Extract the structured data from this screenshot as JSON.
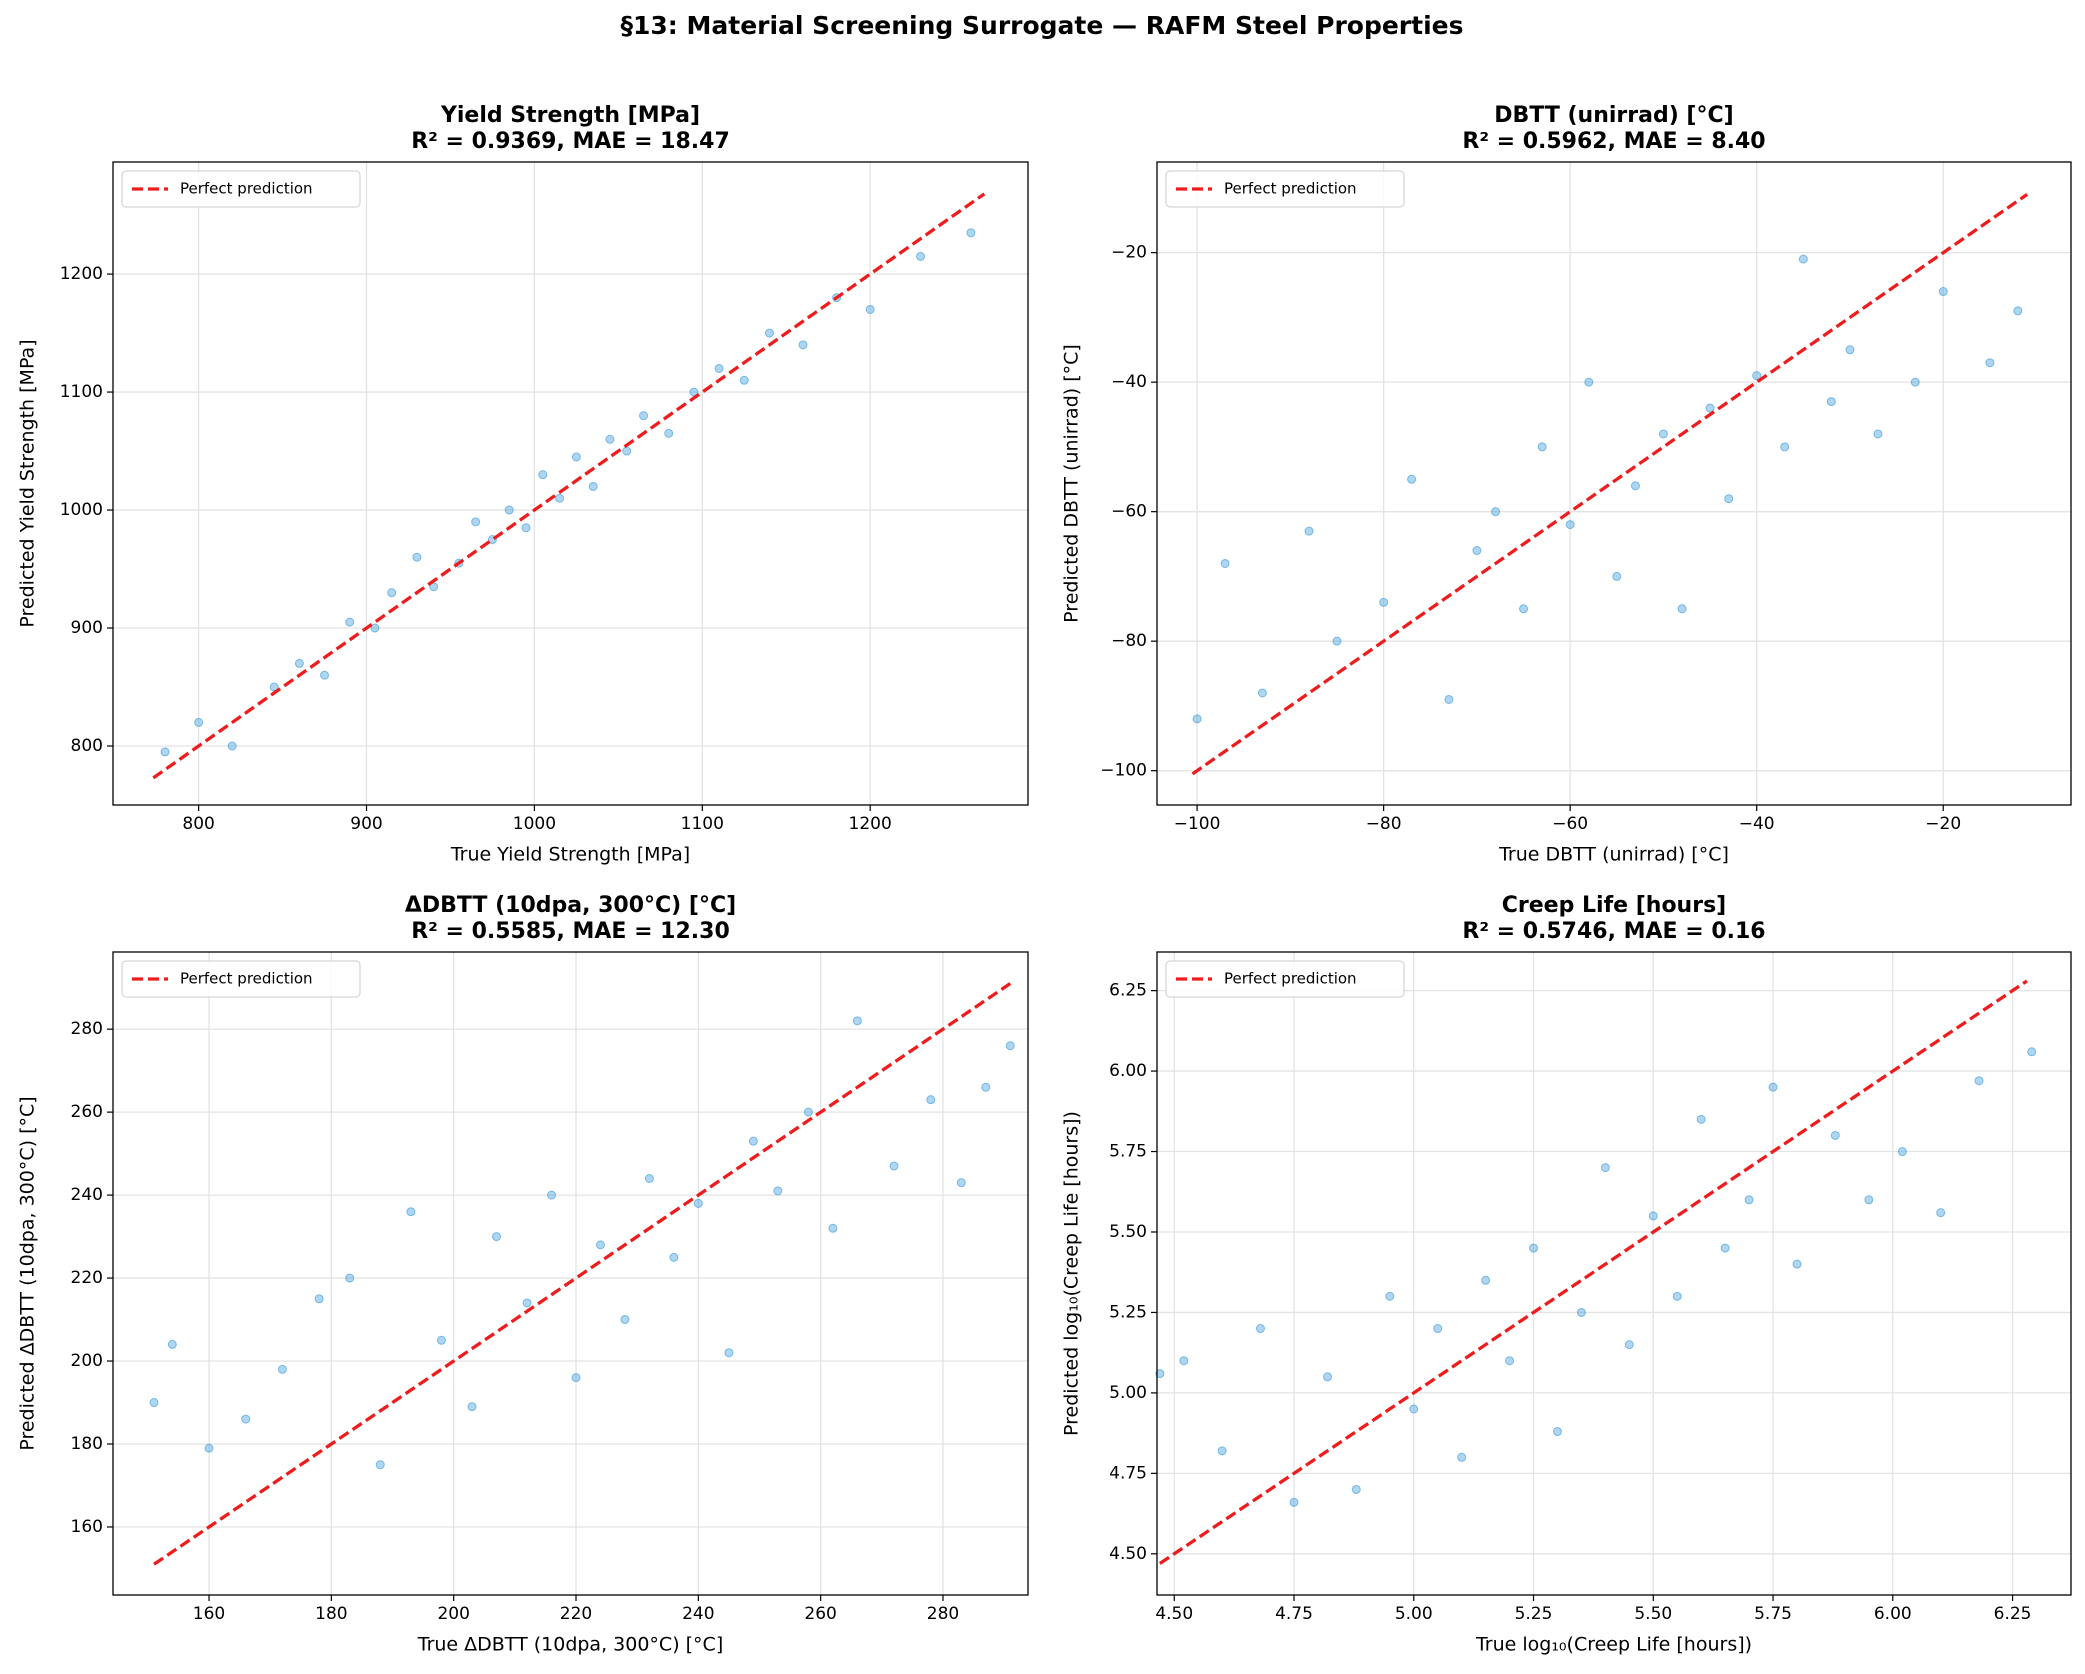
{
  "title": "§13: Material Screening Surrogate — RAFM Steel Properties",
  "chart_data": [
    {
      "type": "scatter",
      "title": "Yield Strength [MPa]",
      "subtitle": "R² = 0.9369, MAE = 18.47",
      "x_label": "True Yield Strength [MPa]",
      "y_label": "Predicted Yield Strength [MPa]",
      "xlim": [
        749,
        1294
      ],
      "ylim": [
        750,
        1295
      ],
      "xticks": [
        800,
        900,
        1000,
        1100,
        1200
      ],
      "yticks": [
        800,
        900,
        1000,
        1100,
        1200
      ],
      "grid": true,
      "legend": "upper left",
      "points": {
        "color": "#3498db",
        "x": [
          780,
          800,
          820,
          845,
          860,
          875,
          890,
          905,
          915,
          930,
          940,
          955,
          965,
          975,
          985,
          995,
          1005,
          1015,
          1025,
          1035,
          1045,
          1055,
          1065,
          1080,
          1095,
          1110,
          1125,
          1140,
          1160,
          1180,
          1200,
          1230,
          1260
        ],
        "y": [
          795,
          820,
          800,
          850,
          870,
          860,
          905,
          900,
          930,
          960,
          935,
          955,
          990,
          975,
          1000,
          985,
          1030,
          1010,
          1045,
          1020,
          1060,
          1050,
          1080,
          1065,
          1100,
          1120,
          1110,
          1150,
          1140,
          1180,
          1170,
          1215,
          1235
        ]
      },
      "reference_line": {
        "name": "Perfect prediction",
        "color": "#ee1c1c",
        "x": [
          773,
          1268
        ],
        "y": [
          773,
          1268
        ]
      }
    },
    {
      "type": "scatter",
      "title": "DBTT (unirrad) [°C]",
      "subtitle": "R² = 0.5962, MAE = 8.40",
      "x_label": "True DBTT (unirrad) [°C]",
      "y_label": "Predicted DBTT (unirrad) [°C]",
      "xlim": [
        -104.3,
        -6.3
      ],
      "ylim": [
        -105.3,
        -6.0
      ],
      "xticks": [
        {
          "value": -100,
          "label": "−100"
        },
        {
          "value": -80,
          "label": "−80"
        },
        {
          "value": -60,
          "label": "−60"
        },
        {
          "value": -40,
          "label": "−40"
        },
        {
          "value": -20,
          "label": "−20"
        }
      ],
      "yticks": [
        {
          "value": -100,
          "label": "−100"
        },
        {
          "value": -80,
          "label": "−80"
        },
        {
          "value": -60,
          "label": "−60"
        },
        {
          "value": -40,
          "label": "−40"
        },
        {
          "value": -20,
          "label": "−20"
        }
      ],
      "grid": true,
      "legend": "upper left",
      "points": {
        "color": "#3498db",
        "x": [
          -100,
          -97,
          -93,
          -88,
          -85,
          -80,
          -77,
          -73,
          -70,
          -68,
          -65,
          -63,
          -60,
          -58,
          -55,
          -53,
          -50,
          -48,
          -45,
          -43,
          -40,
          -37,
          -35,
          -32,
          -30,
          -27,
          -23,
          -20,
          -15,
          -12
        ],
        "y": [
          -92,
          -68,
          -88,
          -63,
          -80,
          -74,
          -55,
          -89,
          -66,
          -60,
          -75,
          -50,
          -62,
          -40,
          -70,
          -56,
          -48,
          -75,
          -44,
          -58,
          -39,
          -50,
          -21,
          -43,
          -35,
          -48,
          -40,
          -26,
          -37,
          -29
        ]
      },
      "reference_line": {
        "name": "Perfect prediction",
        "color": "#ee1c1c",
        "x": [
          -100.5,
          -11
        ],
        "y": [
          -100.5,
          -11
        ]
      }
    },
    {
      "type": "scatter",
      "title": "ΔDBTT (10dpa, 300°C) [°C]",
      "subtitle": "R² = 0.5585, MAE = 12.30",
      "x_label": "True ΔDBTT (10dpa, 300°C) [°C]",
      "y_label": "Predicted ΔDBTT (10dpa, 300°C) [°C]",
      "xlim": [
        144.3,
        293.9
      ],
      "ylim": [
        143.6,
        298.6
      ],
      "xticks": [
        160,
        180,
        200,
        220,
        240,
        260,
        280
      ],
      "yticks": [
        160,
        180,
        200,
        220,
        240,
        260,
        280
      ],
      "grid": true,
      "legend": "upper left",
      "points": {
        "color": "#3498db",
        "x": [
          151,
          154,
          160,
          166,
          172,
          178,
          183,
          188,
          193,
          198,
          203,
          207,
          212,
          216,
          220,
          224,
          228,
          232,
          236,
          240,
          245,
          249,
          253,
          258,
          262,
          266,
          272,
          278,
          283,
          287,
          291
        ],
        "y": [
          190,
          204,
          179,
          186,
          198,
          215,
          220,
          175,
          236,
          205,
          189,
          230,
          214,
          240,
          196,
          228,
          210,
          244,
          225,
          238,
          202,
          253,
          241,
          260,
          232,
          282,
          247,
          263,
          243,
          266,
          276
        ]
      },
      "reference_line": {
        "name": "Perfect prediction",
        "color": "#ee1c1c",
        "x": [
          151,
          291
        ],
        "y": [
          151,
          291
        ]
      }
    },
    {
      "type": "scatter",
      "title": "Creep Life [hours]",
      "subtitle": "R² = 0.5746, MAE = 0.16",
      "x_label": "True log₁₀(Creep Life [hours])",
      "y_label": "Predicted log₁₀(Creep Life [hours])",
      "xlim": [
        4.464,
        6.372
      ],
      "ylim": [
        4.372,
        6.37
      ],
      "xticks": [
        {
          "value": 4.5,
          "label": "4.50"
        },
        4.75,
        {
          "value": 5,
          "label": "5.00"
        },
        5.25,
        {
          "value": 5.5,
          "label": "5.50"
        },
        5.75,
        {
          "value": 6,
          "label": "6.00"
        },
        6.25
      ],
      "yticks": [
        {
          "value": 4.5,
          "label": "4.50"
        },
        4.75,
        {
          "value": 5,
          "label": "5.00"
        },
        5.25,
        {
          "value": 5.5,
          "label": "5.50"
        },
        5.75,
        {
          "value": 6,
          "label": "6.00"
        },
        6.25
      ],
      "grid": true,
      "legend": "upper left",
      "points": {
        "color": "#3498db",
        "x": [
          4.47,
          4.52,
          4.6,
          4.68,
          4.75,
          4.82,
          4.88,
          4.95,
          5.0,
          5.05,
          5.1,
          5.15,
          5.2,
          5.25,
          5.3,
          5.35,
          5.4,
          5.45,
          5.5,
          5.55,
          5.6,
          5.65,
          5.7,
          5.75,
          5.8,
          5.88,
          5.95,
          6.02,
          6.1,
          6.18,
          6.29
        ],
        "y": [
          5.06,
          5.1,
          4.82,
          5.2,
          4.66,
          5.05,
          4.7,
          5.3,
          4.95,
          5.2,
          4.8,
          5.35,
          5.1,
          5.45,
          4.88,
          5.25,
          5.7,
          5.15,
          5.55,
          5.3,
          5.85,
          5.45,
          5.6,
          5.95,
          5.4,
          5.8,
          5.6,
          5.75,
          5.56,
          5.97,
          6.06
        ]
      },
      "reference_line": {
        "name": "Perfect prediction",
        "color": "#ee1c1c",
        "x": [
          4.47,
          6.28
        ],
        "y": [
          4.47,
          6.28
        ]
      }
    }
  ]
}
